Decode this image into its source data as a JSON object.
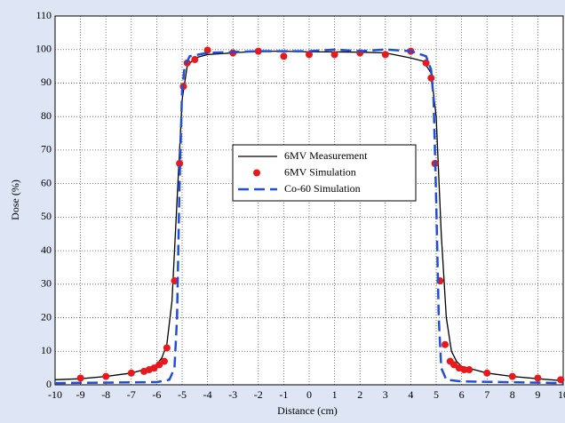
{
  "chart_data": {
    "type": "line",
    "x_label": "Distance (cm)",
    "y_label": "Dose (%)",
    "xlim": [
      -10,
      10
    ],
    "xticks": [
      -10,
      -9,
      -8,
      -7,
      -6,
      -5,
      -4,
      -3,
      -2,
      -1,
      0,
      1,
      2,
      3,
      4,
      5,
      6,
      7,
      8,
      9,
      10
    ],
    "ylim": [
      0,
      110
    ],
    "yticks": [
      0,
      10,
      20,
      30,
      40,
      50,
      60,
      70,
      80,
      90,
      100,
      110
    ],
    "grid": true,
    "legend": "center",
    "series": [
      {
        "name": "6MV Measurement",
        "color": "#000000",
        "style": "solid",
        "x": [
          -10,
          -9,
          -8,
          -7,
          -6.5,
          -6,
          -5.8,
          -5.6,
          -5.4,
          -5.2,
          -5.0,
          -4.8,
          -4.5,
          -4,
          -3,
          -2,
          -1,
          0,
          1,
          2,
          3,
          4,
          4.5,
          4.8,
          5.0,
          5.2,
          5.4,
          5.6,
          5.8,
          6,
          6.5,
          7,
          8,
          9,
          10
        ],
        "values": [
          1.5,
          1.8,
          2.5,
          3.5,
          4.5,
          6,
          8,
          12,
          25,
          55,
          85,
          95,
          97.5,
          98.5,
          99,
          99.5,
          99.5,
          99.3,
          99.3,
          99.2,
          99,
          97.5,
          96.5,
          93,
          80,
          45,
          20,
          10,
          7,
          5.5,
          4.5,
          3.5,
          2.5,
          1.8,
          1.2
        ]
      },
      {
        "name": "6MV Simulation",
        "color": "#e8191c",
        "style": "dots",
        "x": [
          -9,
          -8,
          -7,
          -6.5,
          -6.3,
          -6.1,
          -5.9,
          -5.7,
          -5.6,
          -5.3,
          -5.1,
          -4.95,
          -4.8,
          -4.5,
          -4,
          -3,
          -2,
          -1,
          0,
          1,
          2,
          3,
          4,
          4.6,
          4.8,
          4.95,
          5.15,
          5.35,
          5.55,
          5.7,
          5.9,
          6.1,
          6.3,
          7,
          8,
          9,
          9.9
        ],
        "values": [
          2,
          2.5,
          3.5,
          4,
          4.5,
          5,
          6,
          7,
          11,
          31,
          66,
          89,
          96,
          97,
          99.8,
          99,
          99.5,
          98,
          98.5,
          98.5,
          99,
          98.5,
          99.5,
          96,
          91.5,
          66,
          31,
          12,
          7,
          6,
          5,
          4.5,
          4.5,
          3.5,
          2.5,
          2,
          1.5
        ]
      },
      {
        "name": "Co-60 Simulation",
        "color": "#1f4fd8",
        "style": "dashed",
        "x": [
          -10,
          -6,
          -5.5,
          -5.3,
          -5.2,
          -5.1,
          -5.0,
          -4.9,
          -4.7,
          -4,
          -2,
          0,
          1,
          2,
          3,
          4,
          4.6,
          4.8,
          4.9,
          5.0,
          5.1,
          5.2,
          5.4,
          6,
          10
        ],
        "values": [
          0.5,
          0.8,
          1.5,
          5,
          20,
          60,
          88,
          95,
          98,
          99,
          99.5,
          99.5,
          100,
          99.5,
          100,
          99.5,
          98,
          94,
          85,
          55,
          20,
          5,
          1.5,
          1,
          0.5
        ]
      }
    ]
  }
}
